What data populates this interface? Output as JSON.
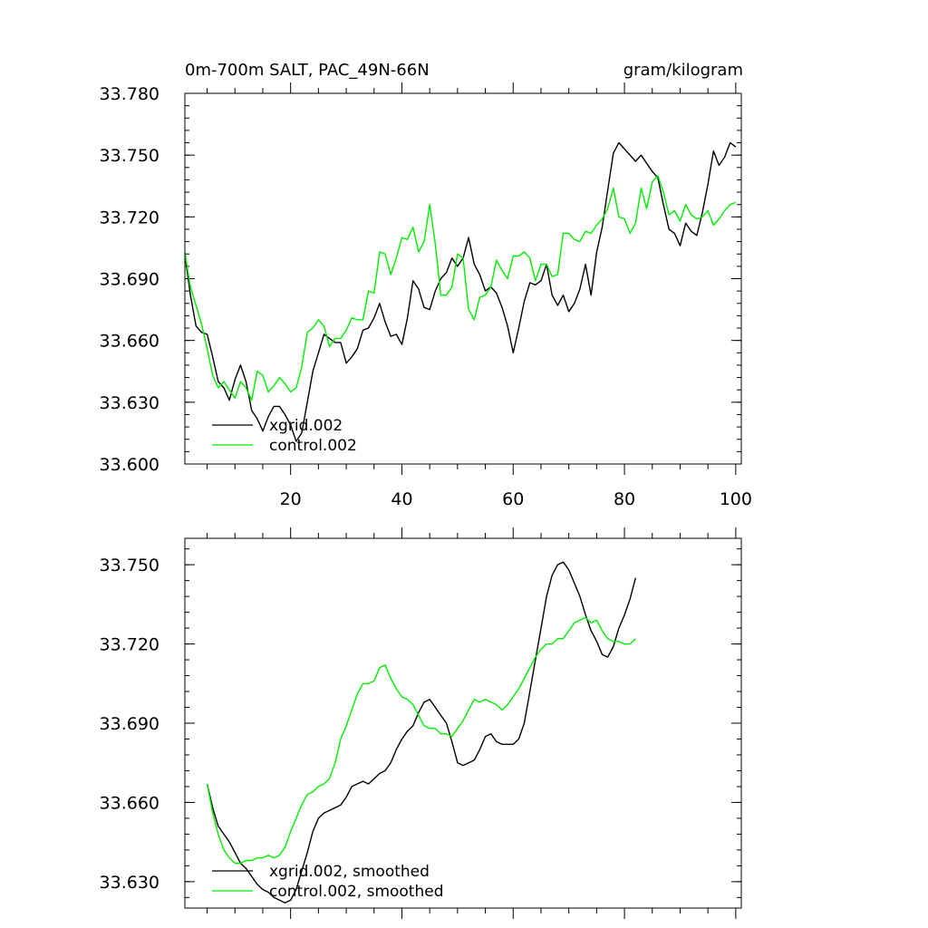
{
  "colors": {
    "xgrid": "#000000",
    "control": "#00ee00",
    "frame": "#000000"
  },
  "chart_data": [
    {
      "type": "line",
      "title": "0m-700m SALT, PAC_49N-66N",
      "units": "gram/kilogram",
      "xlim": [
        1,
        101
      ],
      "ylim": [
        33.6,
        33.78
      ],
      "x_ticks": [
        20,
        40,
        60,
        80,
        100
      ],
      "x_tick_labels": [
        "20",
        "40",
        "60",
        "80",
        "100"
      ],
      "y_ticks": [
        33.6,
        33.63,
        33.66,
        33.69,
        33.72,
        33.75,
        33.78
      ],
      "y_tick_labels": [
        "33.600",
        "33.630",
        "33.660",
        "33.690",
        "33.720",
        "33.750",
        "33.780"
      ],
      "legend_position": "bottom-left",
      "series": [
        {
          "name": "xgrid.002",
          "color": "#000000",
          "x_start": 1,
          "values": [
            33.702,
            33.682,
            33.667,
            33.664,
            33.663,
            33.652,
            33.64,
            33.637,
            33.631,
            33.641,
            33.648,
            33.64,
            33.626,
            33.622,
            33.616,
            33.623,
            33.628,
            33.628,
            33.624,
            33.619,
            33.611,
            33.615,
            33.63,
            33.645,
            33.654,
            33.663,
            33.661,
            33.659,
            33.659,
            33.649,
            33.652,
            33.656,
            33.665,
            33.666,
            33.671,
            33.678,
            33.669,
            33.662,
            33.663,
            33.658,
            33.671,
            33.689,
            33.685,
            33.676,
            33.675,
            33.684,
            33.69,
            33.693,
            33.7,
            33.696,
            33.7,
            33.71,
            33.697,
            33.692,
            33.684,
            33.686,
            33.683,
            33.676,
            33.667,
            33.654,
            33.666,
            33.679,
            33.688,
            33.687,
            33.689,
            33.697,
            33.682,
            33.677,
            33.682,
            33.674,
            33.678,
            33.685,
            33.697,
            33.682,
            33.703,
            33.715,
            33.733,
            33.751,
            33.756,
            33.753,
            33.75,
            33.747,
            33.75,
            33.746,
            33.742,
            33.739,
            33.726,
            33.714,
            33.712,
            33.706,
            33.717,
            33.713,
            33.711,
            33.722,
            33.736,
            33.752,
            33.745,
            33.749,
            33.756,
            33.754
          ]
        },
        {
          "name": "control.002",
          "color": "#00ee00",
          "x_start": 1,
          "values": [
            33.703,
            33.686,
            33.677,
            33.668,
            33.656,
            33.643,
            33.637,
            33.64,
            33.636,
            33.632,
            33.64,
            33.637,
            33.631,
            33.645,
            33.643,
            33.635,
            33.638,
            33.642,
            33.639,
            33.635,
            33.637,
            33.647,
            33.664,
            33.666,
            33.67,
            33.667,
            33.657,
            33.661,
            33.661,
            33.665,
            33.671,
            33.67,
            33.67,
            33.684,
            33.683,
            33.703,
            33.702,
            33.692,
            33.7,
            33.71,
            33.709,
            33.715,
            33.703,
            33.708,
            33.726,
            33.707,
            33.682,
            33.682,
            33.686,
            33.702,
            33.7,
            33.675,
            33.67,
            33.681,
            33.682,
            33.686,
            33.699,
            33.694,
            33.69,
            33.701,
            33.701,
            33.703,
            33.7,
            33.689,
            33.697,
            33.697,
            33.691,
            33.692,
            33.712,
            33.712,
            33.709,
            33.708,
            33.713,
            33.712,
            33.716,
            33.719,
            33.724,
            33.734,
            33.72,
            33.719,
            33.712,
            33.717,
            33.734,
            33.724,
            33.737,
            33.74,
            33.732,
            33.721,
            33.723,
            33.718,
            33.726,
            33.721,
            33.719,
            33.72,
            33.723,
            33.716,
            33.719,
            33.723,
            33.726,
            33.727
          ]
        }
      ]
    },
    {
      "type": "line",
      "xlim": [
        1,
        101
      ],
      "ylim": [
        33.62,
        33.76
      ],
      "x_ticks": [
        20,
        40,
        60,
        80,
        100
      ],
      "y_ticks": [
        33.63,
        33.66,
        33.69,
        33.72,
        33.75
      ],
      "y_tick_labels": [
        "33.630",
        "33.660",
        "33.690",
        "33.720",
        "33.750"
      ],
      "legend_position": "bottom-left",
      "series": [
        {
          "name": "xgrid.002, smoothed",
          "color": "#000000",
          "x_start": 5,
          "values": [
            33.667,
            33.658,
            33.651,
            33.648,
            33.645,
            33.641,
            33.637,
            33.635,
            33.632,
            33.629,
            33.627,
            33.626,
            33.624,
            33.623,
            33.622,
            33.623,
            33.627,
            33.634,
            33.641,
            33.649,
            33.654,
            33.656,
            33.657,
            33.658,
            33.659,
            33.662,
            33.666,
            33.667,
            33.668,
            33.667,
            33.669,
            33.671,
            33.672,
            33.675,
            33.68,
            33.684,
            33.687,
            33.689,
            33.694,
            33.698,
            33.699,
            33.696,
            33.693,
            33.69,
            33.683,
            33.675,
            33.674,
            33.675,
            33.676,
            33.68,
            33.685,
            33.686,
            33.683,
            33.682,
            33.682,
            33.682,
            33.684,
            33.69,
            33.702,
            33.714,
            33.726,
            33.738,
            33.746,
            33.75,
            33.751,
            33.748,
            33.743,
            33.738,
            33.731,
            33.725,
            33.721,
            33.716,
            33.715,
            33.719,
            33.726,
            33.731,
            33.737,
            33.745
          ]
        },
        {
          "name": "control.002, smoothed",
          "color": "#00ee00",
          "x_start": 5,
          "values": [
            33.667,
            33.656,
            33.648,
            33.642,
            33.639,
            33.637,
            33.637,
            33.638,
            33.638,
            33.639,
            33.639,
            33.64,
            33.639,
            33.64,
            33.643,
            33.649,
            33.654,
            33.659,
            33.663,
            33.664,
            33.666,
            33.667,
            33.669,
            33.675,
            33.684,
            33.689,
            33.695,
            33.701,
            33.705,
            33.705,
            33.706,
            33.711,
            33.712,
            33.707,
            33.703,
            33.7,
            33.699,
            33.697,
            33.693,
            33.689,
            33.688,
            33.688,
            33.686,
            33.686,
            33.685,
            33.688,
            33.691,
            33.695,
            33.699,
            33.698,
            33.699,
            33.698,
            33.697,
            33.695,
            33.697,
            33.7,
            33.703,
            33.707,
            33.711,
            33.715,
            33.718,
            33.72,
            33.72,
            33.722,
            33.722,
            33.725,
            33.728,
            33.729,
            33.73,
            33.728,
            33.729,
            33.725,
            33.722,
            33.721,
            33.721,
            33.72,
            33.72,
            33.722
          ]
        }
      ]
    }
  ]
}
